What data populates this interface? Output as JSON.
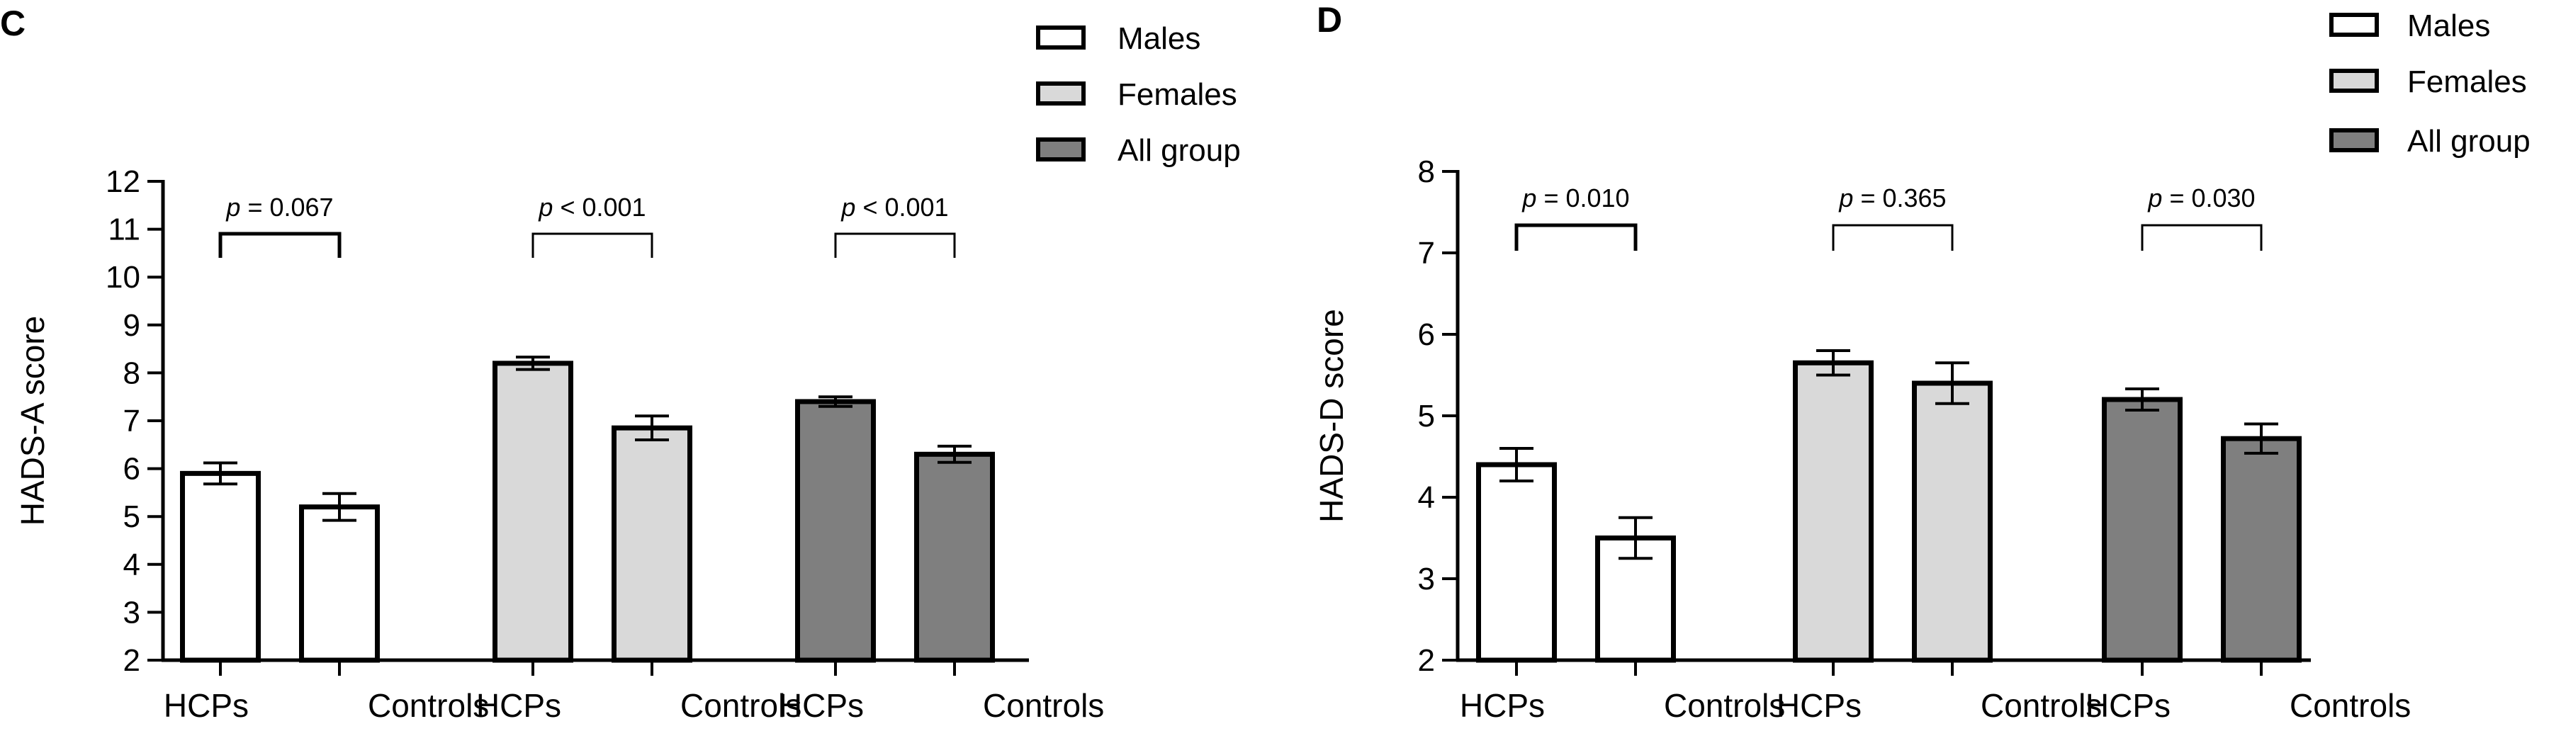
{
  "chart_data": [
    {
      "type": "bar",
      "panel_label": "C",
      "title": "",
      "xlabel": "",
      "ylabel": "HADS-A score",
      "ylim": [
        2,
        12
      ],
      "yticks": [
        "2",
        "3",
        "4",
        "5",
        "6",
        "7",
        "8",
        "9",
        "10",
        "11",
        "12"
      ],
      "groups": [
        {
          "name": "Males",
          "color": "#ffffff",
          "categories": [
            "HCPs",
            "Controls"
          ],
          "values": [
            5.9,
            5.2
          ],
          "errors": [
            0.22,
            0.28
          ],
          "p_value": "p = 0.067"
        },
        {
          "name": "Females",
          "color": "#d9d9d9",
          "categories": [
            "HCPs",
            "Controls"
          ],
          "values": [
            8.2,
            6.85
          ],
          "errors": [
            0.13,
            0.25
          ],
          "p_value": "p < 0.001"
        },
        {
          "name": "All group",
          "color": "#7f7f7f",
          "categories": [
            "HCPs",
            "Controls"
          ],
          "values": [
            7.4,
            6.3
          ],
          "errors": [
            0.1,
            0.17
          ],
          "p_value": "p < 0.001"
        }
      ],
      "legend": [
        {
          "label": "Males",
          "color": "#ffffff"
        },
        {
          "label": "Females",
          "color": "#d9d9d9"
        },
        {
          "label": "All group",
          "color": "#7f7f7f"
        }
      ],
      "legend_position": "top-right"
    },
    {
      "type": "bar",
      "panel_label": "D",
      "title": "",
      "xlabel": "",
      "ylabel": "HADS-D score",
      "ylim": [
        2,
        8
      ],
      "yticks": [
        "2",
        "3",
        "4",
        "5",
        "6",
        "7",
        "8"
      ],
      "groups": [
        {
          "name": "Males",
          "color": "#ffffff",
          "categories": [
            "HCPs",
            "Controls"
          ],
          "values": [
            4.4,
            3.5
          ],
          "errors": [
            0.2,
            0.25
          ],
          "p_value": "p = 0.010"
        },
        {
          "name": "Females",
          "color": "#d9d9d9",
          "categories": [
            "HCPs",
            "Controls"
          ],
          "values": [
            5.65,
            5.4
          ],
          "errors": [
            0.15,
            0.25
          ],
          "p_value": "p = 0.365"
        },
        {
          "name": "All group",
          "color": "#7f7f7f",
          "categories": [
            "HCPs",
            "Controls"
          ],
          "values": [
            5.2,
            4.72
          ],
          "errors": [
            0.13,
            0.18
          ],
          "p_value": "p = 0.030"
        }
      ],
      "legend": [
        {
          "label": "Males",
          "color": "#ffffff"
        },
        {
          "label": "Females",
          "color": "#d9d9d9"
        },
        {
          "label": "All group",
          "color": "#7f7f7f"
        }
      ],
      "legend_position": "top-right"
    }
  ]
}
